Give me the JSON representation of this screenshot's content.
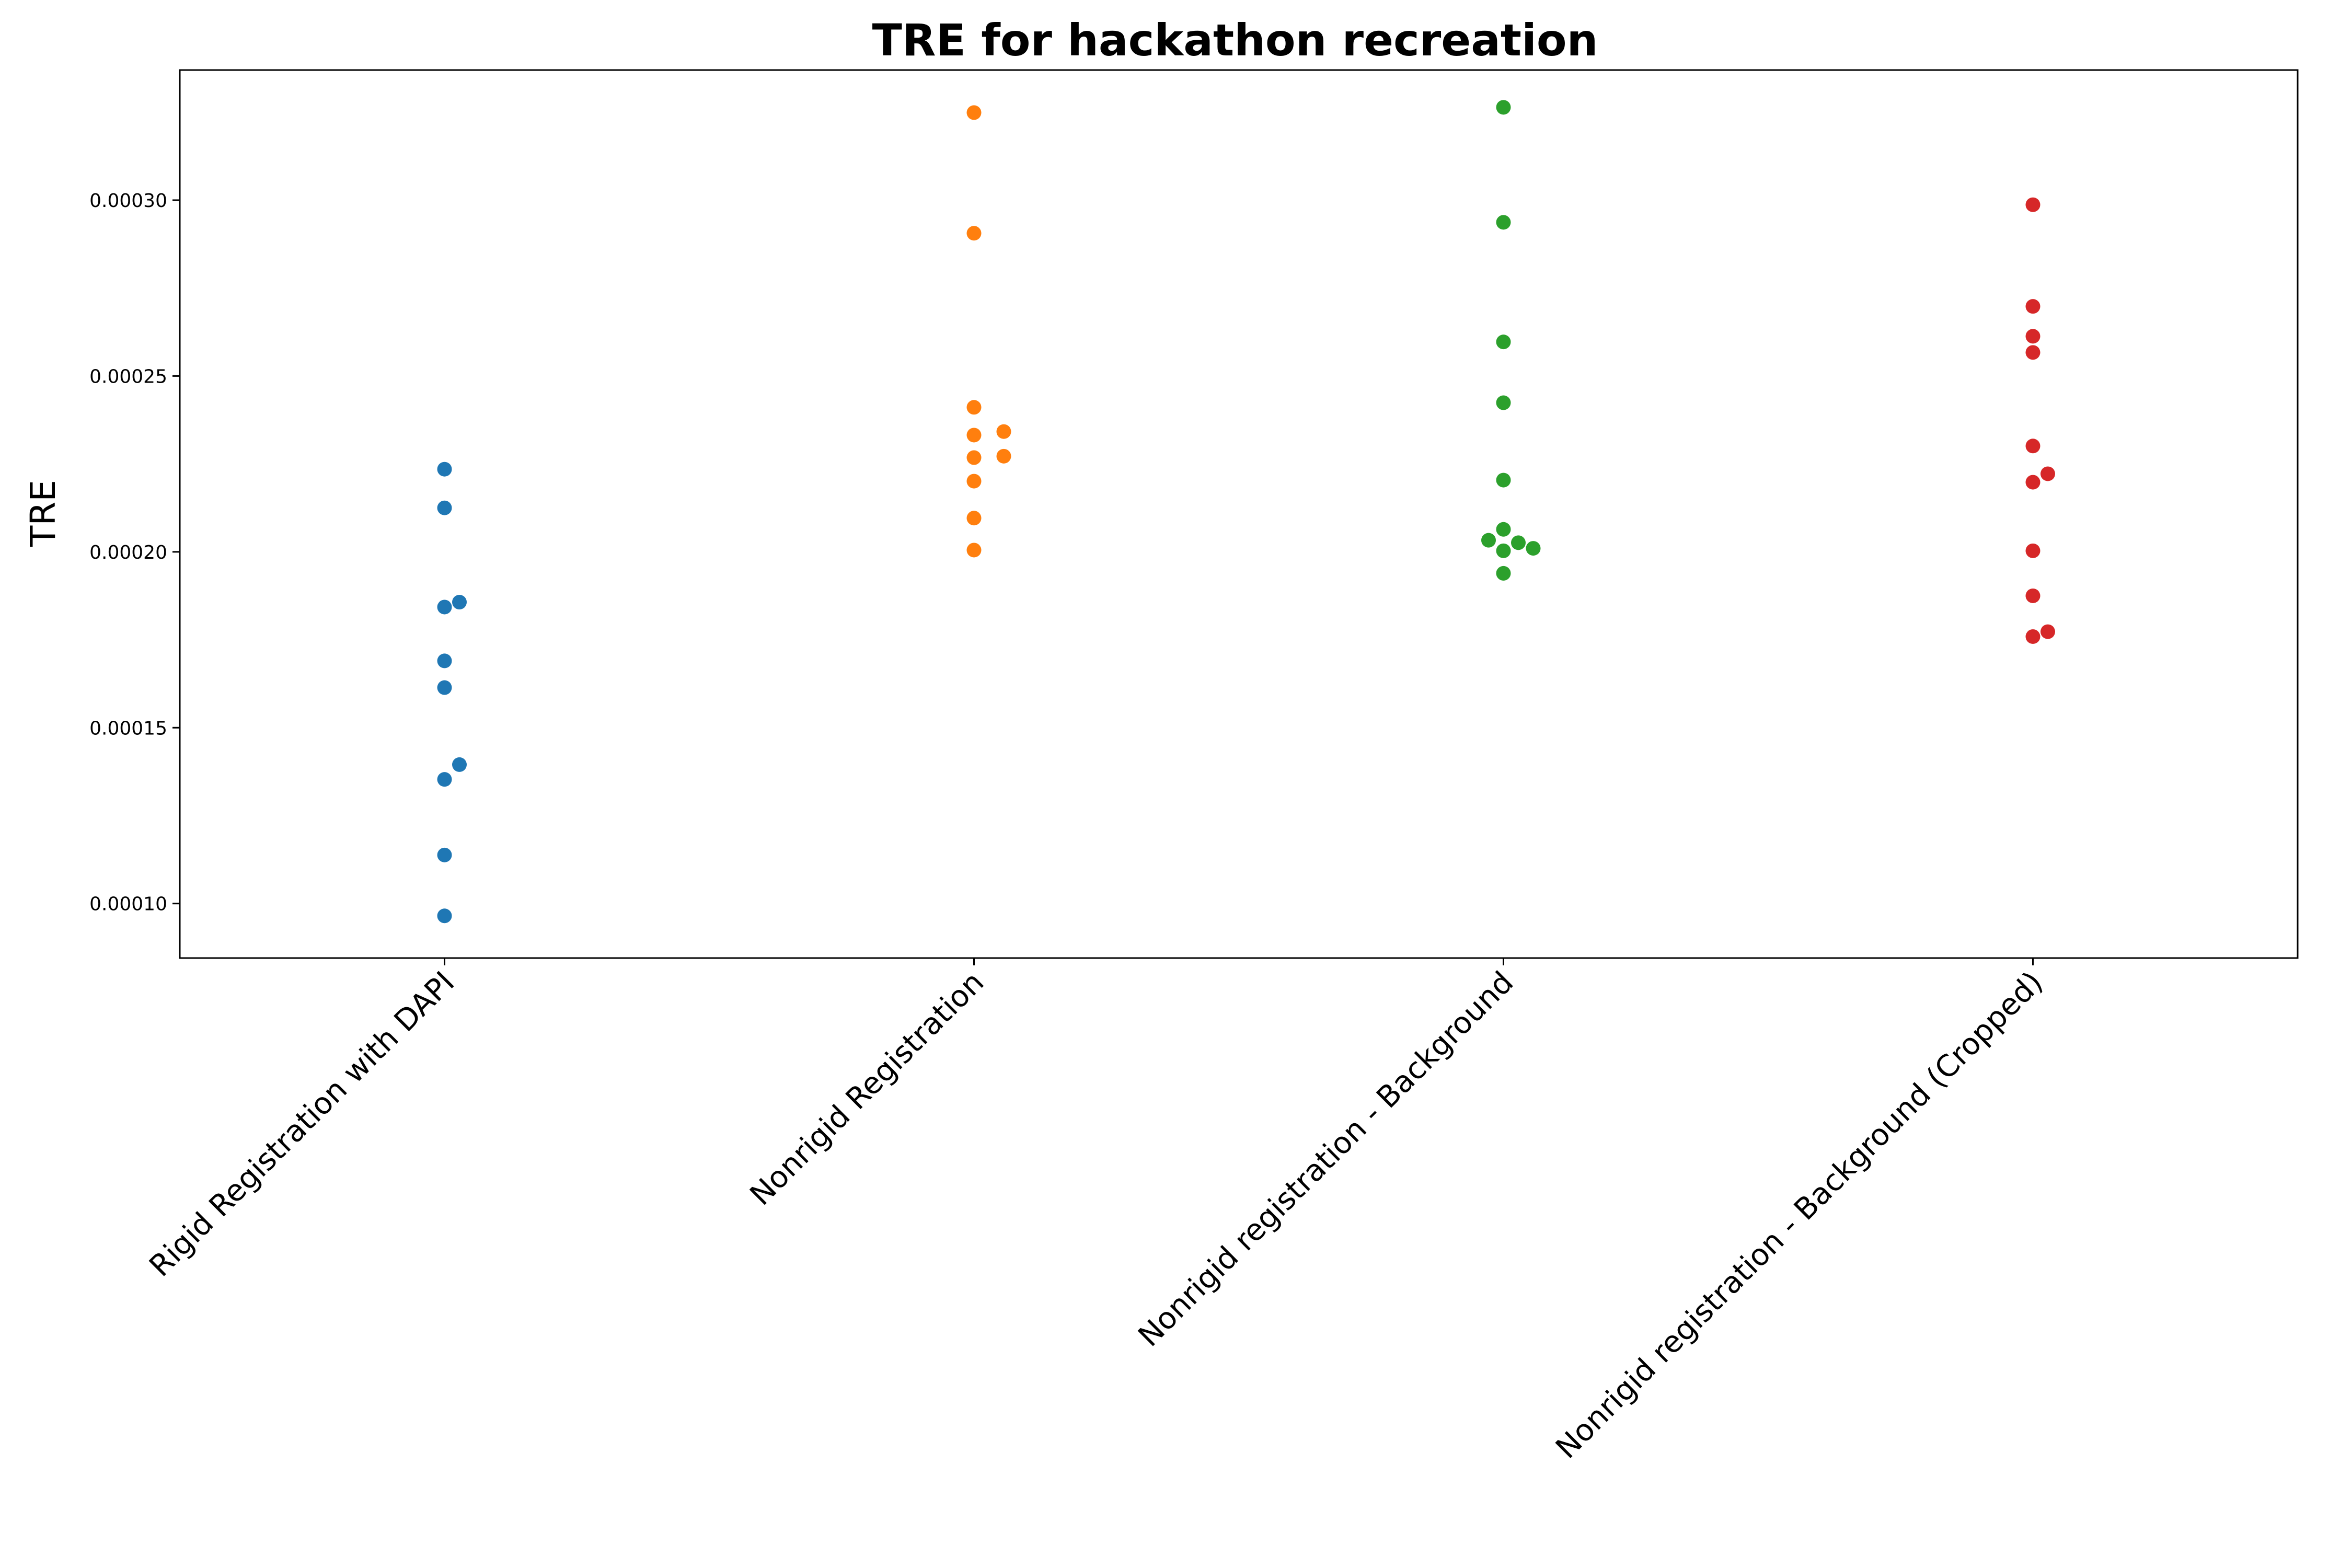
{
  "chart_data": {
    "type": "scatter",
    "subtype": "swarm",
    "title": "TRE for hackathon recreation",
    "xlabel": "",
    "ylabel": "TRE",
    "ylim": [
      8.45e-05,
      0.000337
    ],
    "yticks": [
      0.0001,
      0.00015,
      0.0002,
      0.00025,
      0.0003
    ],
    "ytick_labels": [
      "0.00010",
      "0.00015",
      "0.00020",
      "0.00025",
      "0.00030"
    ],
    "grid": false,
    "legend": "none",
    "categories": [
      "Rigid Registration with DAPI",
      "Nonrigid Registration",
      "Nonrigid registration - Background",
      "Nonrigid registration - Background (Cropped)"
    ],
    "series": [
      {
        "color": "#1f77b4",
        "values": [
          0.0002235,
          0.0002125,
          0.0001857,
          0.0001843,
          0.000169,
          0.0001614,
          0.0001395,
          0.0001353,
          0.0001138,
          9.65e-05
        ]
      },
      {
        "color": "#ff7f0e",
        "values": [
          0.0003249,
          0.0002906,
          0.0002411,
          0.0002342,
          0.0002332,
          0.0002272,
          0.0002268,
          0.0002201,
          0.0002096,
          0.0002005
        ]
      },
      {
        "color": "#2ca02c",
        "values": [
          0.0003264,
          0.0002937,
          0.0002597,
          0.0002424,
          0.0002204,
          0.0002064,
          0.0002033,
          0.0002026,
          0.000201,
          0.0002003,
          0.0001939
        ]
      },
      {
        "color": "#d62728",
        "values": [
          0.0002987,
          0.0002698,
          0.0002613,
          0.0002567,
          0.0002301,
          0.0002222,
          0.0002198,
          0.0002003,
          0.0001875,
          0.0001773,
          0.0001759
        ]
      }
    ]
  }
}
